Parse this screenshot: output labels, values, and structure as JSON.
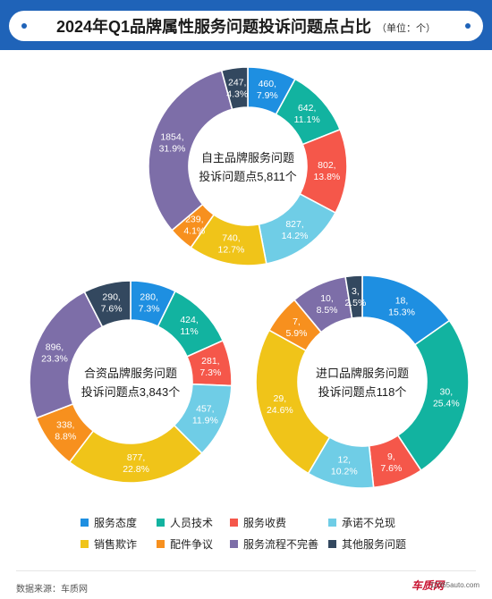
{
  "title": "2024年Q1品牌属性服务问题投诉问题点占比",
  "unit": "（单位：个）",
  "source": "数据来源：车质网",
  "brand": {
    "name": "车质网",
    "url": "12365auto.com"
  },
  "colors": {
    "header": "#1f63b8",
    "服务态度": "#1e8fe1",
    "人员技术": "#12b3a0",
    "服务收费": "#f5574a",
    "承诺不兑现": "#6fcde6",
    "销售欺诈": "#f0c419",
    "配件争议": "#f7901e",
    "服务流程不完善": "#7d6ea8",
    "其他服务问题": "#33485f"
  },
  "legend": [
    "服务态度",
    "人员技术",
    "服务收费",
    "承诺不兑现",
    "销售欺诈",
    "配件争议",
    "服务流程不完善",
    "其他服务问题"
  ],
  "chart_data": [
    {
      "type": "pie",
      "variant": "donut",
      "center": [
        "自主品牌服务问题",
        "投诉问题点5,811个"
      ],
      "categories": [
        "服务态度",
        "人员技术",
        "服务收费",
        "承诺不兑现",
        "销售欺诈",
        "配件争议",
        "服务流程不完善",
        "其他服务问题"
      ],
      "values": [
        460,
        642,
        802,
        827,
        740,
        239,
        1854,
        247
      ],
      "percents": [
        "7.9%",
        "11.1%",
        "13.8%",
        "14.2%",
        "12.7%",
        "4.1%",
        "31.9%",
        "4.3%"
      ]
    },
    {
      "type": "pie",
      "variant": "donut",
      "center": [
        "合资品牌服务问题",
        "投诉问题点3,843个"
      ],
      "categories": [
        "服务态度",
        "人员技术",
        "服务收费",
        "承诺不兑现",
        "销售欺诈",
        "配件争议",
        "服务流程不完善",
        "其他服务问题"
      ],
      "values": [
        280,
        424,
        281,
        457,
        877,
        338,
        896,
        290
      ],
      "percents": [
        "7.3%",
        "11%",
        "7.3%",
        "11.9%",
        "22.8%",
        "8.8%",
        "23.3%",
        "7.6%"
      ]
    },
    {
      "type": "pie",
      "variant": "donut",
      "center": [
        "进口品牌服务问题",
        "投诉问题点118个"
      ],
      "categories": [
        "服务态度",
        "人员技术",
        "服务收费",
        "承诺不兑现",
        "销售欺诈",
        "配件争议",
        "服务流程不完善",
        "其他服务问题"
      ],
      "values": [
        18,
        30,
        9,
        12,
        29,
        7,
        10,
        3
      ],
      "percents": [
        "15.3%",
        "25.4%",
        "7.6%",
        "10.2%",
        "24.6%",
        "5.9%",
        "8.5%",
        "2.5%"
      ]
    }
  ]
}
